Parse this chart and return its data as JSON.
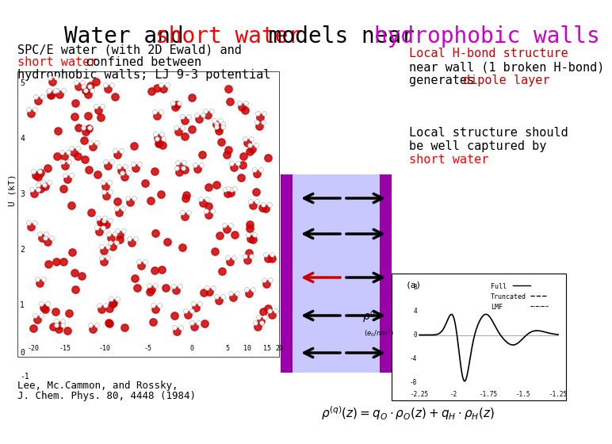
{
  "title_parts": [
    {
      "text": "Water and ",
      "color": "#000000"
    },
    {
      "text": "short water",
      "color": "#ff0000"
    },
    {
      "text": " models near ",
      "color": "#000000"
    },
    {
      "text": "hydrophobic walls",
      "color": "#cc00cc"
    }
  ],
  "left_text_line1": "SPC/E water (with 2D Ewald) and",
  "left_text_line1_color": "#000000",
  "left_text_line2": "short water",
  "left_text_line2_color": "#ff0000",
  "left_text_line3": " confined between",
  "left_text_line3_color": "#000000",
  "left_text_line4": "hydrophobic walls; LJ 9-3 potential",
  "left_text_line4_color": "#000000",
  "right_top_line1": "Local H-bond structure",
  "right_top_line1_color": "#cc0000",
  "right_top_line2": "near wall (1 broken H-bond)",
  "right_top_line2_color": "#000000",
  "right_top_line3": "generates ",
  "right_top_line3_color": "#000000",
  "right_top_line3b": "dipole layer",
  "right_top_line3b_color": "#cc0000",
  "right_bot_line1": "Local structure should",
  "right_bot_line1_color": "#000000",
  "right_bot_line2": "be well captured by",
  "right_bot_line2_color": "#000000",
  "right_bot_line3": "short water",
  "right_bot_line3_color": "#ff0000",
  "bottom_left_line1": "Lee, Mc.Cammon, and Rossky,",
  "bottom_left_line2": "J. Chem. Phys. 80, 4448 (1984)",
  "bg_color": "#ffffff",
  "arrow_panel_bg": "#c8c8ff",
  "wall_color": "#9900aa",
  "arrow_color_black": "#000000",
  "arrow_color_red": "#cc0000",
  "title_fontsize": 20,
  "body_fontsize": 11,
  "small_fontsize": 9
}
